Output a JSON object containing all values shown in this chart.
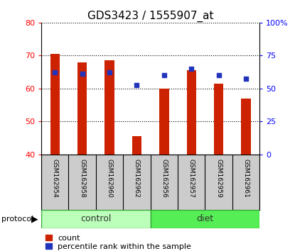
{
  "title": "GDS3423 / 1555907_at",
  "samples": [
    "GSM162954",
    "GSM162958",
    "GSM162960",
    "GSM162962",
    "GSM162956",
    "GSM162957",
    "GSM162959",
    "GSM162961"
  ],
  "count_values": [
    70.5,
    68.0,
    68.5,
    45.5,
    60.0,
    65.5,
    61.5,
    57.0
  ],
  "percentile_values": [
    65.0,
    64.5,
    65.0,
    61.0,
    64.0,
    66.0,
    64.0,
    63.0
  ],
  "bar_bottom": 40,
  "left_ylim": [
    40,
    80
  ],
  "right_ylim": [
    0,
    100
  ],
  "left_yticks": [
    40,
    50,
    60,
    70,
    80
  ],
  "right_yticks": [
    0,
    25,
    50,
    75,
    100
  ],
  "right_yticklabels": [
    "0",
    "25",
    "50",
    "75",
    "100%"
  ],
  "bar_color": "#cc2200",
  "dot_color": "#2233bb",
  "protocol_labels": [
    "control",
    "diet"
  ],
  "protocol_groups": [
    4,
    4
  ],
  "control_bg": "#bbffbb",
  "diet_bg": "#55ee55",
  "xlabel_area_bg": "#cccccc",
  "title_fontsize": 11,
  "tick_fontsize": 8,
  "label_fontsize": 6.5,
  "legend_fontsize": 8,
  "protocol_fontsize": 9
}
